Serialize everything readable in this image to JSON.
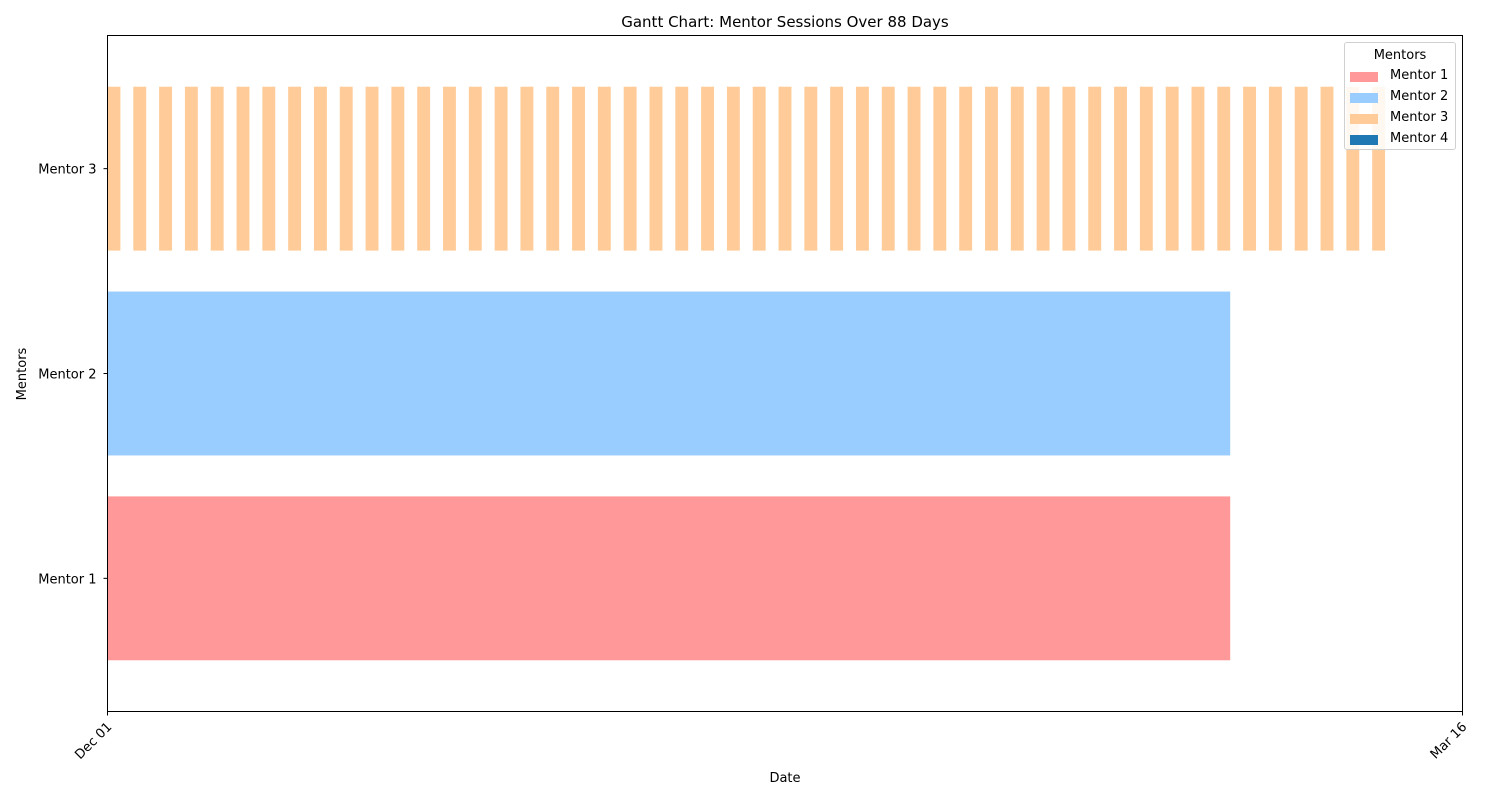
{
  "chart_data": {
    "type": "gantt",
    "title": "Gantt Chart: Mentor Sessions Over 88 Days",
    "xlabel": "Date",
    "ylabel": "Mentors",
    "x_range": [
      "Dec 01",
      "Mar 16"
    ],
    "x_ticks": [
      "Dec 01",
      "Mar 16"
    ],
    "y_categories": [
      "Mentor 1",
      "Mentor 2",
      "Mentor 3"
    ],
    "legend": {
      "title": "Mentors",
      "placement": "top-right",
      "entries": [
        "Mentor 1",
        "Mentor 2",
        "Mentor 3",
        "Mentor 4"
      ]
    },
    "colors": {
      "Mentor 1": "#ff9999",
      "Mentor 2": "#99ccff",
      "Mentor 3": "#ffcc99",
      "Mentor 4": "#1f77b4"
    },
    "series": [
      {
        "name": "Mentor 1",
        "row": "Mentor 1",
        "sessions": [
          {
            "start": "Dec 01",
            "end": "Feb 26"
          }
        ]
      },
      {
        "name": "Mentor 2",
        "row": "Mentor 2",
        "sessions": [
          {
            "start": "Dec 01",
            "end": "Feb 26"
          }
        ]
      },
      {
        "name": "Mentor 3",
        "row": "Mentor 3",
        "pattern": {
          "first_start": "Dec 01",
          "every_days": 2,
          "duration_days": 1,
          "count": 50
        }
      },
      {
        "name": "Mentor 4",
        "row": null,
        "sessions": []
      }
    ]
  }
}
